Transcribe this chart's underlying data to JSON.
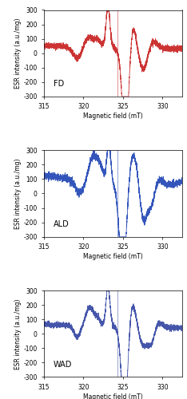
{
  "panels": [
    {
      "label": "FD",
      "color": "#cc3333"
    },
    {
      "label": "ALD",
      "color": "#3355bb"
    },
    {
      "label": "WAD",
      "color": "#4455aa"
    }
  ],
  "xlim": [
    315,
    332.5
  ],
  "ylim": [
    -300,
    300
  ],
  "yticks": [
    -300,
    -200,
    -100,
    0,
    100,
    200,
    300
  ],
  "xticks": [
    315,
    320,
    325,
    330
  ],
  "xlabel": "Magnetic field (mT)",
  "ylabel": "ESR intensity (a.u./mg)",
  "vline_x": 324.3,
  "seed": 7
}
